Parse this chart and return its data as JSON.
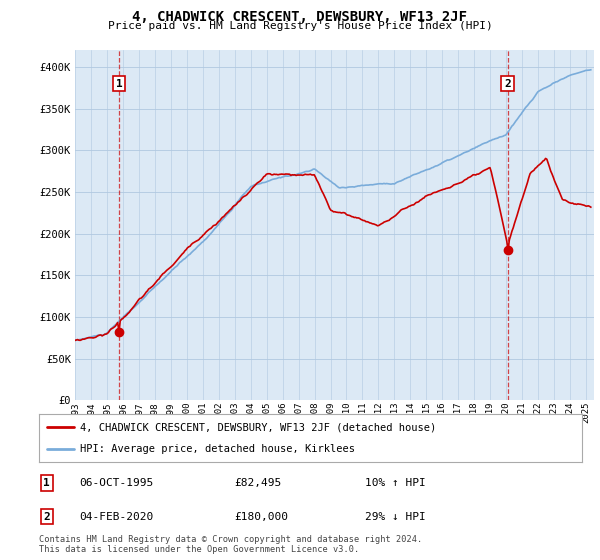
{
  "title": "4, CHADWICK CRESCENT, DEWSBURY, WF13 2JF",
  "subtitle": "Price paid vs. HM Land Registry's House Price Index (HPI)",
  "ylabel_ticks": [
    "£0",
    "£50K",
    "£100K",
    "£150K",
    "£200K",
    "£250K",
    "£300K",
    "£350K",
    "£400K"
  ],
  "ytick_values": [
    0,
    50000,
    100000,
    150000,
    200000,
    250000,
    300000,
    350000,
    400000
  ],
  "ylim": [
    0,
    420000
  ],
  "xlim_start": 1993,
  "xlim_end": 2025.5,
  "hpi_color": "#7aacda",
  "house_color": "#cc0000",
  "bg_color": "#dce9f5",
  "point1_year": 1995.77,
  "point1_price": 82495,
  "point1_label": "1",
  "point1_date": "06-OCT-1995",
  "point1_price_str": "£82,495",
  "point1_hpi_str": "10% ↑ HPI",
  "point2_year": 2020.09,
  "point2_price": 180000,
  "point2_label": "2",
  "point2_date": "04-FEB-2020",
  "point2_price_str": "£180,000",
  "point2_hpi_str": "29% ↓ HPI",
  "legend_line1": "4, CHADWICK CRESCENT, DEWSBURY, WF13 2JF (detached house)",
  "legend_line2": "HPI: Average price, detached house, Kirklees",
  "footer": "Contains HM Land Registry data © Crown copyright and database right 2024.\nThis data is licensed under the Open Government Licence v3.0.",
  "background_color": "#ffffff",
  "grid_color": "#b0c8e0"
}
